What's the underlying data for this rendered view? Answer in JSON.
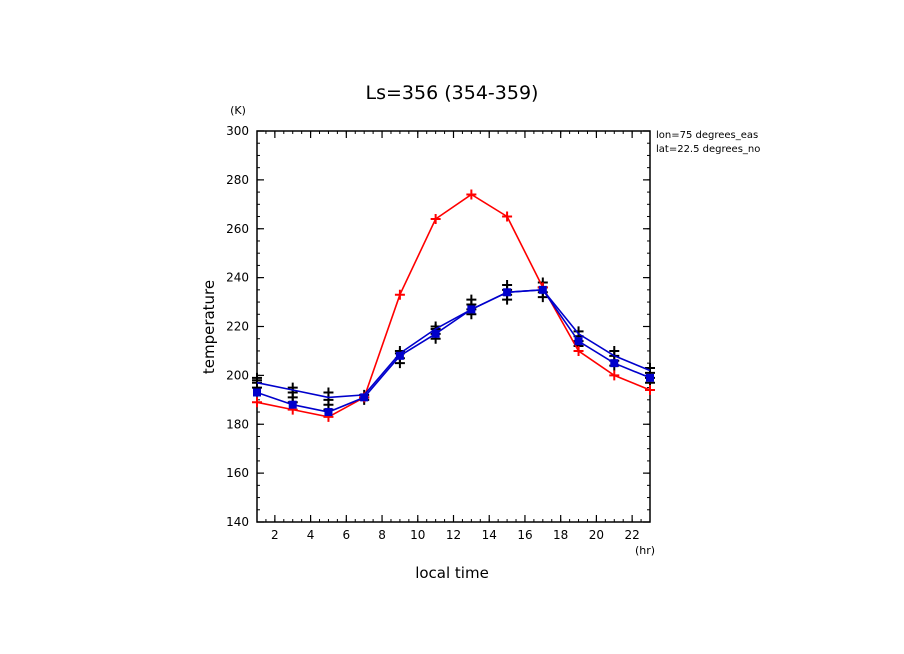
{
  "chart_data": {
    "type": "line",
    "title": "Ls=356 (354-359)",
    "xlabel": "local time",
    "ylabel": "temperature",
    "x_unit": "(hr)",
    "y_unit": "(K)",
    "annotations": [
      "lon=75 degrees_eas",
      "lat=22.5 degrees_no"
    ],
    "xlim": [
      1,
      23
    ],
    "ylim": [
      140,
      300
    ],
    "x_ticks": [
      2,
      4,
      6,
      8,
      10,
      12,
      14,
      16,
      18,
      20,
      22
    ],
    "y_ticks": [
      140,
      160,
      180,
      200,
      220,
      240,
      260,
      280,
      300
    ],
    "grid": false,
    "x": [
      1,
      3,
      5,
      7,
      9,
      11,
      13,
      15,
      17,
      19,
      21,
      23
    ],
    "series": [
      {
        "color": "#ff0000",
        "marker": "plus",
        "values": [
          189,
          186,
          183,
          191,
          233,
          264,
          274,
          265,
          236,
          210,
          200,
          194
        ]
      },
      {
        "color": "#0000cc",
        "marker": "none",
        "values": [
          197,
          194,
          191,
          192,
          209,
          219,
          227,
          234,
          235,
          217,
          208,
          202
        ]
      },
      {
        "color": "#0000cc",
        "marker": "square",
        "values": [
          193,
          188,
          185,
          191,
          208,
          217,
          227,
          234,
          235,
          214,
          205,
          199
        ]
      }
    ],
    "observations": {
      "color": "#000000",
      "points": [
        {
          "x": 1,
          "values": [
            195,
            197,
            198,
            199
          ]
        },
        {
          "x": 3,
          "values": [
            189,
            191,
            193,
            195
          ]
        },
        {
          "x": 5,
          "values": [
            186,
            188,
            190,
            193
          ]
        },
        {
          "x": 7,
          "values": [
            190,
            191,
            192
          ]
        },
        {
          "x": 9,
          "values": [
            205,
            207,
            209,
            210
          ]
        },
        {
          "x": 11,
          "values": [
            215,
            217,
            219,
            220
          ]
        },
        {
          "x": 13,
          "values": [
            225,
            227,
            229,
            231
          ]
        },
        {
          "x": 15,
          "values": [
            231,
            233,
            235,
            237
          ]
        },
        {
          "x": 17,
          "values": [
            232,
            234,
            236,
            238
          ]
        },
        {
          "x": 19,
          "values": [
            212,
            214,
            216,
            218
          ]
        },
        {
          "x": 21,
          "values": [
            204,
            206,
            208,
            210
          ]
        },
        {
          "x": 23,
          "values": [
            197,
            199,
            201,
            203
          ]
        }
      ]
    }
  }
}
